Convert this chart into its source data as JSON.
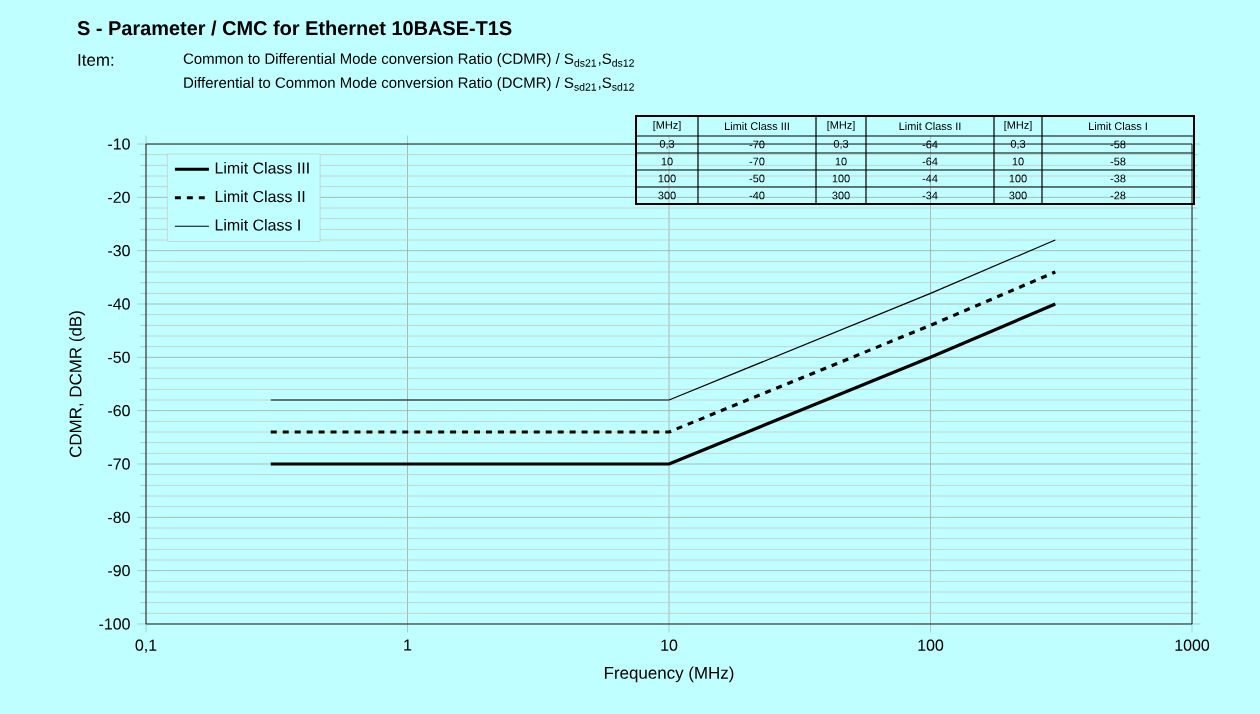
{
  "chart_data": [
    {
      "type": "line",
      "title": "S - Parameter / CMC for Ethernet 10BASE-T1S",
      "subtitle": "Common to Differential Mode conversion Ratio (CDMR) / S$_{ds21}$,S$_{ds12}$",
      "annotations": [
        "Item:",
        "Differential to Common Mode conversion Ratio (DCMR) / S$_{sd21}$,S$_{sd12}$"
      ],
      "xlabel": "Frequency (MHz)",
      "ylabel": "CDMR, DCMR (dB)",
      "x": [
        0.3,
        10,
        100,
        300
      ],
      "series": [
        {
          "name": "Limit Class III",
          "color": "#000000",
          "line_style": "solid",
          "values": [
            -70,
            -70,
            -50,
            -40
          ]
        },
        {
          "name": "Limit Class II",
          "color": "#000000",
          "line_style": "dashed",
          "values": [
            -64,
            -64,
            -44,
            -34
          ]
        },
        {
          "name": "Limit Class I",
          "color": "#000000",
          "line_style": "solid",
          "values": [
            -58,
            -58,
            -38,
            -28
          ]
        }
      ],
      "log": "x",
      "xlim": [
        0.1,
        1000
      ],
      "xticks": [
        {
          "value": 0.1,
          "label": "0,1"
        },
        1,
        10,
        100,
        1000
      ],
      "ylim": [
        -100,
        -10
      ],
      "yticks": [
        -100,
        -90,
        -80,
        -70,
        -60,
        -50,
        -40,
        -30,
        -20,
        -10
      ],
      "grid": true,
      "legend": "top left",
      "marker": "none"
    },
    {
      "type": "other",
      "categories": [
        "[MHz]",
        "Limit Class III",
        "[MHz]",
        "Limit Class II",
        "[MHz]",
        "Limit Class I"
      ],
      "cell_labels": [
        [
          "0,3",
          "-70",
          "0,3",
          "-64",
          "0,3",
          "-58"
        ],
        [
          "10",
          "-70",
          "10",
          "-64",
          "10",
          "-58"
        ],
        [
          "100",
          "-50",
          "100",
          "-44",
          "100",
          "-38"
        ],
        [
          "300",
          "-40",
          "300",
          "-34",
          "300",
          "-28"
        ]
      ]
    }
  ]
}
